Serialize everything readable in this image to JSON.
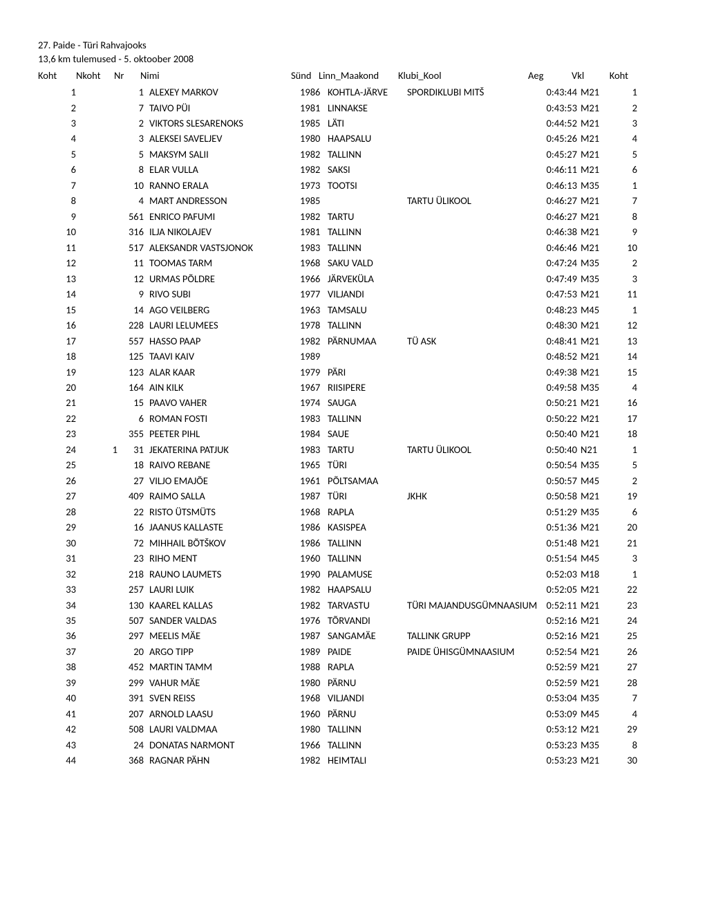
{
  "title1": "27. Paide - Türi Rahvajooks",
  "title2": "13,6 km tulemused - 5. oktoober 2008",
  "headers": {
    "koht": "Koht",
    "nkoht": "Nkoht",
    "nr": "Nr",
    "nimi": "Nimi",
    "synd": "Sünd",
    "linn": "Linn_Maakond",
    "klubi": "Klubi_Kool",
    "aeg": "Aeg",
    "vkl": "Vkl",
    "koht2": "Koht"
  },
  "rows": [
    {
      "koht": "1",
      "nkoht": "",
      "nr": "1",
      "nimi": "ALEXEY  MARKOV",
      "synd": "1986",
      "linn": "KOHTLA-JÄRVE",
      "klubi": "SPORDIKLUBI MITŠ",
      "aeg": "0:43:44",
      "vkl": "M21",
      "koht2": "1"
    },
    {
      "koht": "2",
      "nkoht": "",
      "nr": "7",
      "nimi": "TAIVO  PÜI",
      "synd": "1981",
      "linn": "LINNAKSE",
      "klubi": "",
      "aeg": "0:43:53",
      "vkl": "M21",
      "koht2": "2"
    },
    {
      "koht": "3",
      "nkoht": "",
      "nr": "2",
      "nimi": "VIKTORS  SLESARENOKS",
      "synd": "1985",
      "linn": "LÄTI",
      "klubi": "",
      "aeg": "0:44:52",
      "vkl": "M21",
      "koht2": "3"
    },
    {
      "koht": "4",
      "nkoht": "",
      "nr": "3",
      "nimi": "ALEKSEI  SAVELJEV",
      "synd": "1980",
      "linn": "HAAPSALU",
      "klubi": "",
      "aeg": "0:45:26",
      "vkl": "M21",
      "koht2": "4"
    },
    {
      "koht": "5",
      "nkoht": "",
      "nr": "5",
      "nimi": "MAKSYM  SALII",
      "synd": "1982",
      "linn": "TALLINN",
      "klubi": "",
      "aeg": "0:45:27",
      "vkl": "M21",
      "koht2": "5"
    },
    {
      "koht": "6",
      "nkoht": "",
      "nr": "8",
      "nimi": "ELAR  VULLA",
      "synd": "1982",
      "linn": "SAKSI",
      "klubi": "",
      "aeg": "0:46:11",
      "vkl": "M21",
      "koht2": "6"
    },
    {
      "koht": "7",
      "nkoht": "",
      "nr": "10",
      "nimi": "RANNO  ERALA",
      "synd": "1973",
      "linn": "TOOTSI",
      "klubi": "",
      "aeg": "0:46:13",
      "vkl": "M35",
      "koht2": "1"
    },
    {
      "koht": "8",
      "nkoht": "",
      "nr": "4",
      "nimi": "MART  ANDRESSON",
      "synd": "1985",
      "linn": "",
      "klubi": "TARTU ÜLIKOOL",
      "aeg": "0:46:27",
      "vkl": "M21",
      "koht2": "7"
    },
    {
      "koht": "9",
      "nkoht": "",
      "nr": "561",
      "nimi": "ENRICO  PAFUMI",
      "synd": "1982",
      "linn": "TARTU",
      "klubi": "",
      "aeg": "0:46:27",
      "vkl": "M21",
      "koht2": "8"
    },
    {
      "koht": "10",
      "nkoht": "",
      "nr": "316",
      "nimi": "ILJA  NIKOLAJEV",
      "synd": "1981",
      "linn": "TALLINN",
      "klubi": "",
      "aeg": "0:46:38",
      "vkl": "M21",
      "koht2": "9"
    },
    {
      "koht": "11",
      "nkoht": "",
      "nr": "517",
      "nimi": "ALEKSANDR  VASTSJONOK",
      "synd": "1983",
      "linn": "TALLINN",
      "klubi": "",
      "aeg": "0:46:46",
      "vkl": "M21",
      "koht2": "10"
    },
    {
      "koht": "12",
      "nkoht": "",
      "nr": "11",
      "nimi": "TOOMAS  TARM",
      "synd": "1968",
      "linn": "SAKU VALD",
      "klubi": "",
      "aeg": "0:47:24",
      "vkl": "M35",
      "koht2": "2"
    },
    {
      "koht": "13",
      "nkoht": "",
      "nr": "12",
      "nimi": "URMAS  PÕLDRE",
      "synd": "1966",
      "linn": "JÄRVEKÜLA",
      "klubi": "",
      "aeg": "0:47:49",
      "vkl": "M35",
      "koht2": "3"
    },
    {
      "koht": "14",
      "nkoht": "",
      "nr": "9",
      "nimi": "RIVO  SUBI",
      "synd": "1977",
      "linn": "VILJANDI",
      "klubi": "",
      "aeg": "0:47:53",
      "vkl": "M21",
      "koht2": "11"
    },
    {
      "koht": "15",
      "nkoht": "",
      "nr": "14",
      "nimi": "AGO  VEILBERG",
      "synd": "1963",
      "linn": "TAMSALU",
      "klubi": "",
      "aeg": "0:48:23",
      "vkl": "M45",
      "koht2": "1"
    },
    {
      "koht": "16",
      "nkoht": "",
      "nr": "228",
      "nimi": "LAURI  LELUMEES",
      "synd": "1978",
      "linn": "TALLINN",
      "klubi": "",
      "aeg": "0:48:30",
      "vkl": "M21",
      "koht2": "12"
    },
    {
      "koht": "17",
      "nkoht": "",
      "nr": "557",
      "nimi": "HASSO  PAAP",
      "synd": "1982",
      "linn": "PÄRNUMAA",
      "klubi": "TÜ ASK",
      "aeg": "0:48:41",
      "vkl": "M21",
      "koht2": "13"
    },
    {
      "koht": "18",
      "nkoht": "",
      "nr": "125",
      "nimi": "TAAVI  KAIV",
      "synd": "1989",
      "linn": "",
      "klubi": "",
      "aeg": "0:48:52",
      "vkl": "M21",
      "koht2": "14"
    },
    {
      "koht": "19",
      "nkoht": "",
      "nr": "123",
      "nimi": "ALAR  KAAR",
      "synd": "1979",
      "linn": "PÄRI",
      "klubi": "",
      "aeg": "0:49:38",
      "vkl": "M21",
      "koht2": "15"
    },
    {
      "koht": "20",
      "nkoht": "",
      "nr": "164",
      "nimi": "AIN  KILK",
      "synd": "1967",
      "linn": "RIISIPERE",
      "klubi": "",
      "aeg": "0:49:58",
      "vkl": "M35",
      "koht2": "4"
    },
    {
      "koht": "21",
      "nkoht": "",
      "nr": "15",
      "nimi": "PAAVO  VAHER",
      "synd": "1974",
      "linn": "SAUGA",
      "klubi": "",
      "aeg": "0:50:21",
      "vkl": "M21",
      "koht2": "16"
    },
    {
      "koht": "22",
      "nkoht": "",
      "nr": "6",
      "nimi": "ROMAN  FOSTI",
      "synd": "1983",
      "linn": "TALLINN",
      "klubi": "",
      "aeg": "0:50:22",
      "vkl": "M21",
      "koht2": "17"
    },
    {
      "koht": "23",
      "nkoht": "",
      "nr": "355",
      "nimi": "PEETER  PIHL",
      "synd": "1984",
      "linn": "SAUE",
      "klubi": "",
      "aeg": "0:50:40",
      "vkl": "M21",
      "koht2": "18"
    },
    {
      "koht": "24",
      "nkoht": "1",
      "nr": "31",
      "nimi": "JEKATERINA  PATJUK",
      "synd": "1983",
      "linn": "TARTU",
      "klubi": "TARTU ÜLIKOOL",
      "aeg": "0:50:40",
      "vkl": "N21",
      "koht2": "1"
    },
    {
      "koht": "25",
      "nkoht": "",
      "nr": "18",
      "nimi": "RAIVO  REBANE",
      "synd": "1965",
      "linn": "TÜRI",
      "klubi": "",
      "aeg": "0:50:54",
      "vkl": "M35",
      "koht2": "5"
    },
    {
      "koht": "26",
      "nkoht": "",
      "nr": "27",
      "nimi": "VILJO  EMAJÕE",
      "synd": "1961",
      "linn": "PÕLTSAMAA",
      "klubi": "",
      "aeg": "0:50:57",
      "vkl": "M45",
      "koht2": "2"
    },
    {
      "koht": "27",
      "nkoht": "",
      "nr": "409",
      "nimi": "RAIMO  SALLA",
      "synd": "1987",
      "linn": "TÜRI",
      "klubi": "JKHK",
      "aeg": "0:50:58",
      "vkl": "M21",
      "koht2": "19"
    },
    {
      "koht": "28",
      "nkoht": "",
      "nr": "22",
      "nimi": "RISTO  ÜTSMÜTS",
      "synd": "1968",
      "linn": "RAPLA",
      "klubi": "",
      "aeg": "0:51:29",
      "vkl": "M35",
      "koht2": "6"
    },
    {
      "koht": "29",
      "nkoht": "",
      "nr": "16",
      "nimi": "JAANUS  KALLASTE",
      "synd": "1986",
      "linn": "KASISPEA",
      "klubi": "",
      "aeg": "0:51:36",
      "vkl": "M21",
      "koht2": "20"
    },
    {
      "koht": "30",
      "nkoht": "",
      "nr": "72",
      "nimi": "MIHHAIL  BÕTŠKOV",
      "synd": "1986",
      "linn": "TALLINN",
      "klubi": "",
      "aeg": "0:51:48",
      "vkl": "M21",
      "koht2": "21"
    },
    {
      "koht": "31",
      "nkoht": "",
      "nr": "23",
      "nimi": "RIHO  MENT",
      "synd": "1960",
      "linn": "TALLINN",
      "klubi": "",
      "aeg": "0:51:54",
      "vkl": "M45",
      "koht2": "3"
    },
    {
      "koht": "32",
      "nkoht": "",
      "nr": "218",
      "nimi": "RAUNO  LAUMETS",
      "synd": "1990",
      "linn": "PALAMUSE",
      "klubi": "",
      "aeg": "0:52:03",
      "vkl": "M18",
      "koht2": "1"
    },
    {
      "koht": "33",
      "nkoht": "",
      "nr": "257",
      "nimi": "LAURI  LUIK",
      "synd": "1982",
      "linn": "HAAPSALU",
      "klubi": "",
      "aeg": "0:52:05",
      "vkl": "M21",
      "koht2": "22"
    },
    {
      "koht": "34",
      "nkoht": "",
      "nr": "130",
      "nimi": "KAAREL  KALLAS",
      "synd": "1982",
      "linn": "TARVASTU",
      "klubi": "TÜRI MAJANDUSGÜMNAASIUM",
      "aeg": "0:52:11",
      "vkl": "M21",
      "koht2": "23"
    },
    {
      "koht": "35",
      "nkoht": "",
      "nr": "507",
      "nimi": "SANDER  VALDAS",
      "synd": "1976",
      "linn": "TÕRVANDI",
      "klubi": "",
      "aeg": "0:52:16",
      "vkl": "M21",
      "koht2": "24"
    },
    {
      "koht": "36",
      "nkoht": "",
      "nr": "297",
      "nimi": "MEELIS  MÄE",
      "synd": "1987",
      "linn": "SANGAMÄE",
      "klubi": "TALLINK GRUPP",
      "aeg": "0:52:16",
      "vkl": "M21",
      "koht2": "25"
    },
    {
      "koht": "37",
      "nkoht": "",
      "nr": "20",
      "nimi": "ARGO  TIPP",
      "synd": "1989",
      "linn": "PAIDE",
      "klubi": "PAIDE ÜHISGÜMNAASIUM",
      "aeg": "0:52:54",
      "vkl": "M21",
      "koht2": "26"
    },
    {
      "koht": "38",
      "nkoht": "",
      "nr": "452",
      "nimi": "MARTIN  TAMM",
      "synd": "1988",
      "linn": "RAPLA",
      "klubi": "",
      "aeg": "0:52:59",
      "vkl": "M21",
      "koht2": "27"
    },
    {
      "koht": "39",
      "nkoht": "",
      "nr": "299",
      "nimi": "VAHUR  MÄE",
      "synd": "1980",
      "linn": "PÄRNU",
      "klubi": "",
      "aeg": "0:52:59",
      "vkl": "M21",
      "koht2": "28"
    },
    {
      "koht": "40",
      "nkoht": "",
      "nr": "391",
      "nimi": "SVEN  REISS",
      "synd": "1968",
      "linn": "VILJANDI",
      "klubi": "",
      "aeg": "0:53:04",
      "vkl": "M35",
      "koht2": "7"
    },
    {
      "koht": "41",
      "nkoht": "",
      "nr": "207",
      "nimi": "ARNOLD  LAASU",
      "synd": "1960",
      "linn": "PÄRNU",
      "klubi": "",
      "aeg": "0:53:09",
      "vkl": "M45",
      "koht2": "4"
    },
    {
      "koht": "42",
      "nkoht": "",
      "nr": "508",
      "nimi": "LAURI  VALDMAA",
      "synd": "1980",
      "linn": "TALLINN",
      "klubi": "",
      "aeg": "0:53:12",
      "vkl": "M21",
      "koht2": "29"
    },
    {
      "koht": "43",
      "nkoht": "",
      "nr": "24",
      "nimi": "DONATAS  NARMONT",
      "synd": "1966",
      "linn": "TALLINN",
      "klubi": "",
      "aeg": "0:53:23",
      "vkl": "M35",
      "koht2": "8"
    },
    {
      "koht": "44",
      "nkoht": "",
      "nr": "368",
      "nimi": "RAGNAR  PÄHN",
      "synd": "1982",
      "linn": "HEIMTALI",
      "klubi": "",
      "aeg": "0:53:23",
      "vkl": "M21",
      "koht2": "30"
    }
  ]
}
